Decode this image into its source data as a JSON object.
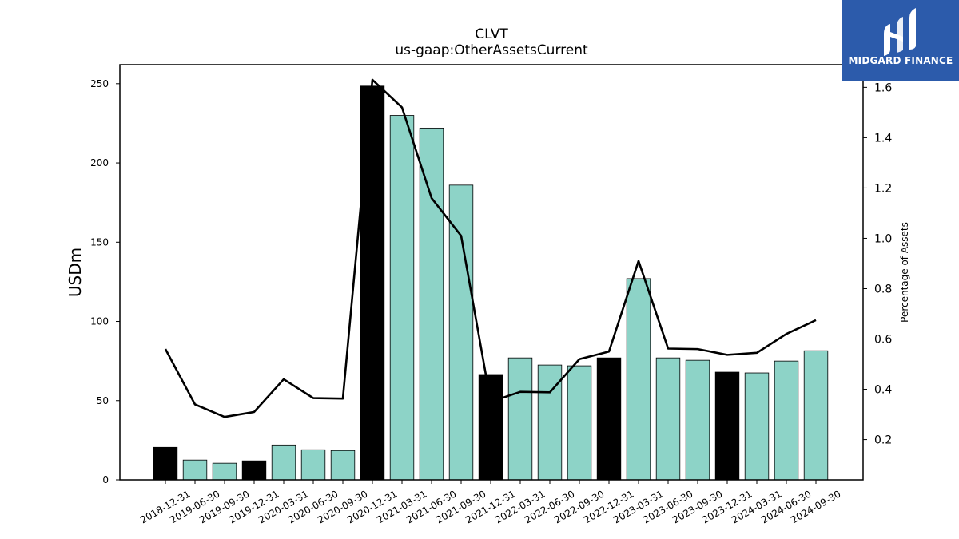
{
  "chart_data": {
    "type": "bar",
    "title": "CLVT",
    "subtitle": "us-gaap:OtherAssetsCurrent",
    "ylabel": "USDm",
    "y2label": "Percentage of Assets",
    "ylim": [
      0,
      262
    ],
    "y2lim": [
      0.04,
      1.69
    ],
    "yticks": [
      0,
      50,
      100,
      150,
      200,
      250
    ],
    "y2ticks": [
      0.2,
      0.4,
      0.6,
      0.8,
      1.0,
      1.2,
      1.4,
      1.6
    ],
    "categories": [
      "2018-12-31",
      "2019-06-30",
      "2019-09-30",
      "2019-12-31",
      "2020-03-31",
      "2020-06-30",
      "2020-09-30",
      "2020-12-31",
      "2021-03-31",
      "2021-06-30",
      "2021-09-30",
      "2021-12-31",
      "2022-03-31",
      "2022-06-30",
      "2022-09-30",
      "2022-12-31",
      "2023-03-31",
      "2023-06-30",
      "2023-09-30",
      "2023-12-31",
      "2024-03-31",
      "2024-06-30",
      "2024-09-30"
    ],
    "series": [
      {
        "kind": "bar",
        "values": [
          20.5,
          12.5,
          10.5,
          12,
          22,
          19,
          18.5,
          248.5,
          230,
          222,
          186,
          66.5,
          77,
          72.5,
          72,
          77,
          127,
          77,
          75.5,
          68,
          67.5,
          75,
          81.5
        ],
        "annual": [
          true,
          false,
          false,
          true,
          false,
          false,
          false,
          true,
          false,
          false,
          false,
          true,
          false,
          false,
          false,
          true,
          false,
          false,
          false,
          true,
          false,
          false,
          false
        ]
      },
      {
        "kind": "line",
        "axis": "right",
        "values": [
          0.56,
          0.34,
          0.29,
          0.31,
          0.44,
          0.365,
          0.363,
          1.63,
          1.52,
          1.16,
          1.01,
          0.35,
          0.39,
          0.388,
          0.52,
          0.55,
          0.91,
          0.562,
          0.56,
          0.537,
          0.545,
          0.62,
          0.675
        ]
      }
    ],
    "colors": {
      "annual_bar": "#000000",
      "quarter_bar": "#8dd3c7",
      "line": "#000000",
      "brand": "#2c5bab"
    },
    "grid": false
  },
  "logo": {
    "text": "MIDGARD FINANCE",
    "icon": "midgard-logo-icon"
  }
}
